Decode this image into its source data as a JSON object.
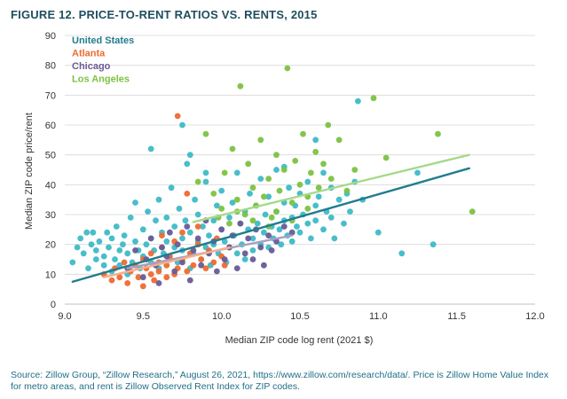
{
  "title": "FIGURE 12. PRICE-TO-RENT RATIOS VS. RENTS, 2015",
  "source": "Source: Zillow Group, “Zillow Research,” August 26, 2021, https://www.zillow.com/research/data/. Price is Zillow Home Value Index for metro areas, and rent is Zillow Observed Rent Index for ZIP codes.",
  "chart_data": {
    "type": "scatter",
    "xlabel": "Median ZIP code log rent (2021 $)",
    "ylabel": "Median ZIP code price/rent",
    "xlim": [
      9.0,
      12.0
    ],
    "ylim": [
      0,
      90
    ],
    "xticks": [
      "9.0",
      "9.5",
      "10.0",
      "10.5",
      "11.0",
      "11.5",
      "12.0"
    ],
    "yticks": [
      "0",
      "10",
      "20",
      "30",
      "40",
      "50",
      "60",
      "70",
      "80",
      "90"
    ],
    "grid": "horizontal",
    "legend_position": "top-left",
    "series": [
      {
        "name": "United States",
        "color": "#3dbbc7",
        "points": [
          [
            9.05,
            14
          ],
          [
            9.08,
            19
          ],
          [
            9.1,
            22
          ],
          [
            9.12,
            17
          ],
          [
            9.14,
            24
          ],
          [
            9.15,
            12
          ],
          [
            9.17,
            20
          ],
          [
            9.18,
            24
          ],
          [
            9.2,
            15
          ],
          [
            9.2,
            18
          ],
          [
            9.22,
            21
          ],
          [
            9.25,
            13
          ],
          [
            9.25,
            16
          ],
          [
            9.27,
            24
          ],
          [
            9.28,
            19
          ],
          [
            9.3,
            11
          ],
          [
            9.3,
            22
          ],
          [
            9.32,
            15
          ],
          [
            9.33,
            26
          ],
          [
            9.35,
            18
          ],
          [
            9.35,
            13
          ],
          [
            9.37,
            20
          ],
          [
            9.38,
            23
          ],
          [
            9.4,
            10
          ],
          [
            9.4,
            17
          ],
          [
            9.42,
            29
          ],
          [
            9.43,
            14
          ],
          [
            9.45,
            21
          ],
          [
            9.45,
            34
          ],
          [
            9.47,
            18
          ],
          [
            9.48,
            12
          ],
          [
            9.5,
            25
          ],
          [
            9.5,
            16
          ],
          [
            9.52,
            20
          ],
          [
            9.53,
            31
          ],
          [
            9.55,
            14
          ],
          [
            9.55,
            22
          ],
          [
            9.57,
            18
          ],
          [
            9.58,
            28
          ],
          [
            9.6,
            12
          ],
          [
            9.6,
            35
          ],
          [
            9.62,
            24
          ],
          [
            9.63,
            17
          ],
          [
            9.65,
            21
          ],
          [
            9.65,
            29
          ],
          [
            9.67,
            15
          ],
          [
            9.68,
            39
          ],
          [
            9.7,
            19
          ],
          [
            9.7,
            26
          ],
          [
            9.72,
            14
          ],
          [
            9.73,
            32
          ],
          [
            9.75,
            22
          ],
          [
            9.75,
            18
          ],
          [
            9.77,
            28
          ],
          [
            9.78,
            47
          ],
          [
            9.8,
            12
          ],
          [
            9.8,
            24
          ],
          [
            9.82,
            17
          ],
          [
            9.83,
            35
          ],
          [
            9.85,
            21
          ],
          [
            9.85,
            30
          ],
          [
            9.87,
            15
          ],
          [
            9.88,
            26
          ],
          [
            9.9,
            19
          ],
          [
            9.9,
            41
          ],
          [
            9.92,
            23
          ],
          [
            9.93,
            13
          ],
          [
            9.95,
            28
          ],
          [
            9.95,
            20
          ],
          [
            9.97,
            33
          ],
          [
            9.98,
            17
          ],
          [
            10.0,
            25
          ],
          [
            10.0,
            38
          ],
          [
            10.02,
            21
          ],
          [
            10.03,
            14
          ],
          [
            10.05,
            29
          ],
          [
            10.05,
            19
          ],
          [
            10.07,
            34
          ],
          [
            10.08,
            23
          ],
          [
            10.1,
            17
          ],
          [
            10.1,
            44
          ],
          [
            10.12,
            27
          ],
          [
            10.13,
            20
          ],
          [
            10.15,
            31
          ],
          [
            10.15,
            15
          ],
          [
            10.17,
            25
          ],
          [
            10.18,
            37
          ],
          [
            10.2,
            22
          ],
          [
            10.2,
            18
          ],
          [
            10.22,
            33
          ],
          [
            10.23,
            27
          ],
          [
            10.25,
            20
          ],
          [
            10.25,
            42
          ],
          [
            10.27,
            24
          ],
          [
            10.28,
            30
          ],
          [
            10.3,
            19
          ],
          [
            10.3,
            36
          ],
          [
            10.32,
            26
          ],
          [
            10.33,
            22
          ],
          [
            10.35,
            31
          ],
          [
            10.35,
            45
          ],
          [
            10.37,
            25
          ],
          [
            10.38,
            20
          ],
          [
            10.4,
            34
          ],
          [
            10.4,
            28
          ],
          [
            10.42,
            23
          ],
          [
            10.43,
            39
          ],
          [
            10.45,
            29
          ],
          [
            10.45,
            21
          ],
          [
            10.47,
            33
          ],
          [
            10.48,
            26
          ],
          [
            10.5,
            24
          ],
          [
            10.5,
            37
          ],
          [
            10.52,
            30
          ],
          [
            10.55,
            27
          ],
          [
            10.55,
            41
          ],
          [
            10.57,
            22
          ],
          [
            10.6,
            33
          ],
          [
            10.6,
            28
          ],
          [
            10.62,
            36
          ],
          [
            10.65,
            25
          ],
          [
            10.65,
            44
          ],
          [
            10.67,
            31
          ],
          [
            10.7,
            29
          ],
          [
            10.7,
            39
          ],
          [
            10.72,
            22
          ],
          [
            10.75,
            35
          ],
          [
            10.78,
            27
          ],
          [
            10.8,
            37
          ],
          [
            10.82,
            31
          ],
          [
            10.85,
            41
          ],
          [
            10.87,
            68
          ],
          [
            10.9,
            35
          ],
          [
            11.0,
            24
          ],
          [
            11.15,
            17
          ],
          [
            11.25,
            44
          ],
          [
            11.35,
            20
          ],
          [
            9.75,
            60
          ],
          [
            9.55,
            52
          ],
          [
            9.8,
            50
          ],
          [
            10.6,
            55
          ],
          [
            10.4,
            46
          ],
          [
            9.9,
            44
          ]
        ]
      },
      {
        "name": "Atlanta",
        "color": "#ef6a2f",
        "points": [
          [
            9.25,
            10
          ],
          [
            9.3,
            8
          ],
          [
            9.32,
            12
          ],
          [
            9.35,
            9
          ],
          [
            9.38,
            14
          ],
          [
            9.4,
            7
          ],
          [
            9.42,
            11
          ],
          [
            9.45,
            13
          ],
          [
            9.47,
            9
          ],
          [
            9.5,
            15
          ],
          [
            9.5,
            6
          ],
          [
            9.52,
            12
          ],
          [
            9.55,
            10
          ],
          [
            9.55,
            17
          ],
          [
            9.57,
            8
          ],
          [
            9.6,
            14
          ],
          [
            9.6,
            11
          ],
          [
            9.62,
            19
          ],
          [
            9.65,
            9
          ],
          [
            9.65,
            13
          ],
          [
            9.67,
            16
          ],
          [
            9.7,
            10
          ],
          [
            9.7,
            21
          ],
          [
            9.72,
            12
          ],
          [
            9.75,
            15
          ],
          [
            9.75,
            24
          ],
          [
            9.78,
            11
          ],
          [
            9.8,
            17
          ],
          [
            9.82,
            13
          ],
          [
            9.85,
            20
          ],
          [
            9.87,
            15
          ],
          [
            9.9,
            12
          ],
          [
            9.92,
            18
          ],
          [
            9.95,
            14
          ],
          [
            9.97,
            22
          ],
          [
            10.0,
            16
          ],
          [
            10.02,
            13
          ],
          [
            10.05,
            19
          ],
          [
            9.72,
            63
          ],
          [
            9.78,
            37
          ],
          [
            9.85,
            26
          ],
          [
            9.62,
            23
          ]
        ]
      },
      {
        "name": "Chicago",
        "color": "#6a5a96",
        "points": [
          [
            9.4,
            12
          ],
          [
            9.45,
            18
          ],
          [
            9.5,
            9
          ],
          [
            9.52,
            15
          ],
          [
            9.55,
            22
          ],
          [
            9.58,
            13
          ],
          [
            9.6,
            7
          ],
          [
            9.62,
            19
          ],
          [
            9.65,
            16
          ],
          [
            9.67,
            24
          ],
          [
            9.7,
            11
          ],
          [
            9.72,
            20
          ],
          [
            9.75,
            14
          ],
          [
            9.78,
            26
          ],
          [
            9.8,
            8
          ],
          [
            9.82,
            18
          ],
          [
            9.85,
            22
          ],
          [
            9.87,
            13
          ],
          [
            9.9,
            28
          ],
          [
            9.92,
            17
          ],
          [
            9.95,
            21
          ],
          [
            9.97,
            11
          ],
          [
            10.0,
            25
          ],
          [
            10.02,
            15
          ],
          [
            10.05,
            19
          ],
          [
            10.07,
            23
          ],
          [
            10.1,
            12
          ],
          [
            10.12,
            27
          ],
          [
            10.15,
            17
          ],
          [
            10.17,
            22
          ],
          [
            10.2,
            15
          ],
          [
            10.22,
            25
          ],
          [
            10.25,
            19
          ],
          [
            10.27,
            13
          ],
          [
            10.3,
            23
          ],
          [
            10.32,
            18
          ],
          [
            10.35,
            21
          ],
          [
            10.4,
            26
          ],
          [
            10.45,
            24
          ]
        ]
      },
      {
        "name": "Los Angeles",
        "color": "#7cc242",
        "points": [
          [
            9.85,
            41
          ],
          [
            9.9,
            57
          ],
          [
            9.95,
            37
          ],
          [
            10.0,
            32
          ],
          [
            10.02,
            44
          ],
          [
            10.05,
            27
          ],
          [
            10.07,
            52
          ],
          [
            10.1,
            35
          ],
          [
            10.12,
            73
          ],
          [
            10.15,
            30
          ],
          [
            10.17,
            47
          ],
          [
            10.2,
            39
          ],
          [
            10.22,
            33
          ],
          [
            10.25,
            55
          ],
          [
            10.27,
            36
          ],
          [
            10.3,
            42
          ],
          [
            10.32,
            29
          ],
          [
            10.35,
            50
          ],
          [
            10.37,
            38
          ],
          [
            10.4,
            45
          ],
          [
            10.42,
            79
          ],
          [
            10.45,
            34
          ],
          [
            10.47,
            48
          ],
          [
            10.5,
            40
          ],
          [
            10.52,
            57
          ],
          [
            10.55,
            36
          ],
          [
            10.57,
            44
          ],
          [
            10.6,
            51
          ],
          [
            10.62,
            39
          ],
          [
            10.65,
            47
          ],
          [
            10.68,
            60
          ],
          [
            10.7,
            42
          ],
          [
            10.75,
            55
          ],
          [
            10.8,
            38
          ],
          [
            10.85,
            45
          ],
          [
            10.97,
            69
          ],
          [
            11.05,
            49
          ],
          [
            11.38,
            57
          ],
          [
            11.6,
            31
          ],
          [
            10.3,
            26
          ],
          [
            10.2,
            28
          ],
          [
            10.35,
            31
          ],
          [
            10.45,
            28
          ],
          [
            10.55,
            32
          ],
          [
            9.98,
            29
          ],
          [
            10.1,
            31
          ]
        ]
      }
    ],
    "trendlines": [
      {
        "name": "United States",
        "color": "#217c8f",
        "x": [
          9.05,
          11.58
        ],
        "y": [
          7.5,
          45.5
        ]
      },
      {
        "name": "Los Angeles",
        "color": "#a6d98a",
        "x": [
          9.82,
          11.58
        ],
        "y": [
          27.5,
          50
        ]
      },
      {
        "name": "Chicago",
        "color": "#a89fbf",
        "x": [
          9.4,
          10.45
        ],
        "y": [
          12,
          23
        ]
      },
      {
        "name": "Atlanta",
        "color": "#f3b08f",
        "x": [
          9.25,
          10.05
        ],
        "y": [
          9,
          19
        ]
      }
    ]
  }
}
